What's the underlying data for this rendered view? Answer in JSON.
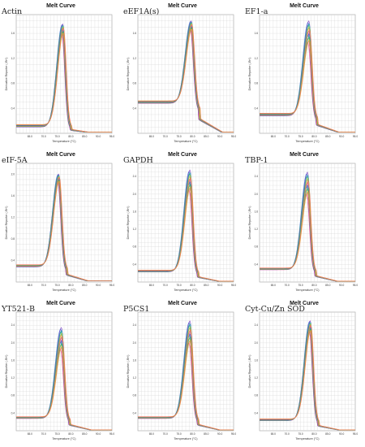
{
  "chart_data": [
    {
      "type": "line",
      "title": "Melt Curve",
      "gene_label": "Actin",
      "xlabel": "Temperature (°C)",
      "ylabel": "Derivative Reporter (-Rn')",
      "x_ticks": [
        "65.0",
        "70.0",
        "75.0",
        "80.0",
        "85.0",
        "90.0",
        "95.0"
      ],
      "y_ticks": [
        "0.4",
        "0.8",
        "1.2",
        "1.6"
      ],
      "ylim": [
        0,
        1.9
      ],
      "xlim": [
        60,
        95
      ],
      "peak_temp": 77.0,
      "peak_height": [
        1.58,
        1.75
      ],
      "baseline": 0.12
    },
    {
      "type": "line",
      "title": "Melt Curve",
      "gene_label": "eEF1A(s)",
      "xlabel": "Temperature (°C)",
      "ylabel": "Derivative Reporter (-Rn')",
      "x_ticks": [
        "65.0",
        "70.0",
        "75.0",
        "80.0",
        "85.0",
        "90.0",
        "95.0"
      ],
      "y_ticks": [
        "0.4",
        "0.8",
        "1.2",
        "1.6"
      ],
      "ylim": [
        0,
        1.9
      ],
      "xlim": [
        60,
        95
      ],
      "peak_temp": 79.5,
      "peak_height": [
        1.65,
        1.8
      ],
      "baseline": 0.5
    },
    {
      "type": "line",
      "title": "Melt Curve",
      "gene_label": "EF1-a",
      "xlabel": "Temperature (°C)",
      "ylabel": "Derivative Reporter (-Rn')",
      "x_ticks": [
        "65.0",
        "70.0",
        "75.0",
        "80.0",
        "85.0",
        "90.0",
        "95.0"
      ],
      "y_ticks": [
        "0.4",
        "0.8",
        "1.2",
        "1.6"
      ],
      "ylim": [
        0,
        1.9
      ],
      "xlim": [
        60,
        95
      ],
      "peak_temp": 78.0,
      "peak_height": [
        1.45,
        1.8
      ],
      "baseline": 0.3
    },
    {
      "type": "line",
      "title": "Melt Curve",
      "gene_label": "eIF-5A",
      "xlabel": "Temperature (°C)",
      "ylabel": "Derivative Reporter (-Rn')",
      "x_ticks": [
        "65.0",
        "70.0",
        "75.0",
        "80.0",
        "85.0",
        "90.0",
        "95.0"
      ],
      "y_ticks": [
        "0.4",
        "0.8",
        "1.2",
        "1.6",
        "2.0"
      ],
      "ylim": [
        0,
        2.2
      ],
      "xlim": [
        60,
        95
      ],
      "peak_temp": 75.5,
      "peak_height": [
        1.85,
        2.0
      ],
      "baseline": 0.3
    },
    {
      "type": "line",
      "title": "Melt Curve",
      "gene_label": "GAPDH",
      "xlabel": "Temperature (°C)",
      "ylabel": "Derivative Reporter (-Rn')",
      "x_ticks": [
        "65.0",
        "70.0",
        "75.0",
        "80.0",
        "85.0",
        "90.0",
        "95.0"
      ],
      "y_ticks": [
        "0.4",
        "0.8",
        "1.2",
        "1.6",
        "2.0",
        "2.4"
      ],
      "ylim": [
        0,
        2.7
      ],
      "xlim": [
        60,
        95
      ],
      "peak_temp": 79.0,
      "peak_height": [
        2.1,
        2.55
      ],
      "baseline": 0.25
    },
    {
      "type": "line",
      "title": "Melt Curve",
      "gene_label": "TBP-1",
      "xlabel": "Temperature (°C)",
      "ylabel": "Derivative Reporter (-Rn')",
      "x_ticks": [
        "65.0",
        "70.0",
        "75.0",
        "80.0",
        "85.0",
        "90.0",
        "95.0"
      ],
      "y_ticks": [
        "0.4",
        "0.8",
        "1.2",
        "1.6",
        "2.0",
        "2.4"
      ],
      "ylim": [
        0,
        2.7
      ],
      "xlim": [
        60,
        95
      ],
      "peak_temp": 77.5,
      "peak_height": [
        2.0,
        2.5
      ],
      "baseline": 0.3
    },
    {
      "type": "line",
      "title": "Melt Curve",
      "gene_label": "YT521-B",
      "xlabel": "Temperature (°C)",
      "ylabel": "Derivative Reporter (-Rn')",
      "x_ticks": [
        "65.0",
        "70.0",
        "75.0",
        "80.0",
        "85.0",
        "90.0",
        "95.0"
      ],
      "y_ticks": [
        "0.4",
        "0.8",
        "1.2",
        "1.6",
        "2.0",
        "2.4"
      ],
      "ylim": [
        0,
        2.7
      ],
      "xlim": [
        60,
        95
      ],
      "peak_temp": 76.5,
      "peak_height": [
        1.85,
        2.35
      ],
      "baseline": 0.3
    },
    {
      "type": "line",
      "title": "Melt Curve",
      "gene_label": "P5CS1",
      "xlabel": "Temperature (°C)",
      "ylabel": "Derivative Reporter (-Rn')",
      "x_ticks": [
        "65.0",
        "70.0",
        "75.0",
        "80.0",
        "85.0",
        "90.0",
        "95.0"
      ],
      "y_ticks": [
        "0.4",
        "0.8",
        "1.2",
        "1.6",
        "2.0",
        "2.4"
      ],
      "ylim": [
        0,
        2.7
      ],
      "xlim": [
        60,
        95
      ],
      "peak_temp": 79.0,
      "peak_height": [
        2.0,
        2.5
      ],
      "baseline": 0.3
    },
    {
      "type": "line",
      "title": "Melt Curve",
      "gene_label": "Cyt-Cu/Zn SOD",
      "xlabel": "Temperature (°C)",
      "ylabel": "Derivative Reporter (-Rn')",
      "x_ticks": [
        "65.0",
        "70.0",
        "75.0",
        "80.0",
        "85.0",
        "90.0",
        "95.0"
      ],
      "y_ticks": [
        "0.4",
        "0.8",
        "1.2",
        "1.6",
        "2.0",
        "2.4"
      ],
      "ylim": [
        0,
        2.7
      ],
      "xlim": [
        60,
        95
      ],
      "peak_temp": 78.5,
      "peak_height": [
        2.25,
        2.5
      ],
      "baseline": 0.25
    }
  ],
  "colors": {
    "series": [
      "#e83e8c",
      "#7b3fbf",
      "#2f6fd8",
      "#12a5a5",
      "#25b35a",
      "#a9c93a",
      "#f0a030",
      "#ff6f61"
    ],
    "background": "#ffffff",
    "grid": "#d8d8d8"
  }
}
